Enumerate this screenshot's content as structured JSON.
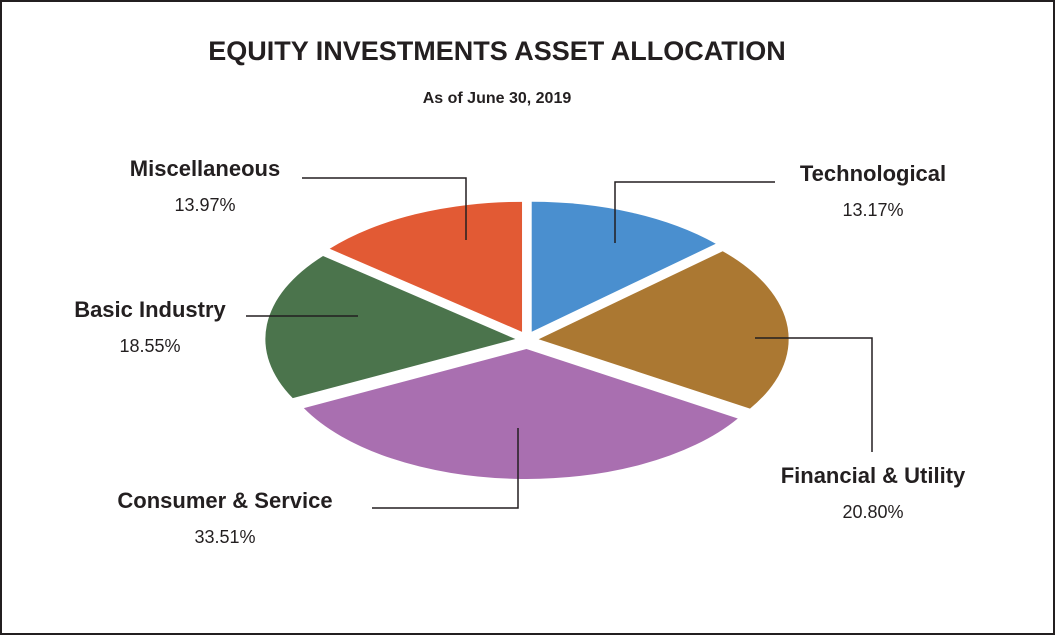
{
  "chart_data": {
    "type": "pie",
    "title": "EQUITY INVESTMENTS ASSET ALLOCATION",
    "subtitle": "As of June 30, 2019",
    "categories": [
      "Technological",
      "Financial & Utility",
      "Consumer & Service",
      "Basic Industry",
      "Miscellaneous"
    ],
    "values": [
      13.17,
      20.8,
      33.51,
      18.55,
      13.97
    ],
    "value_labels": [
      "13.17%",
      "20.80%",
      "33.51%",
      "18.55%",
      "13.97%"
    ],
    "colors": [
      "#4a8fcf",
      "#ab7832",
      "#a96fb0",
      "#4b744c",
      "#e25a34"
    ]
  }
}
